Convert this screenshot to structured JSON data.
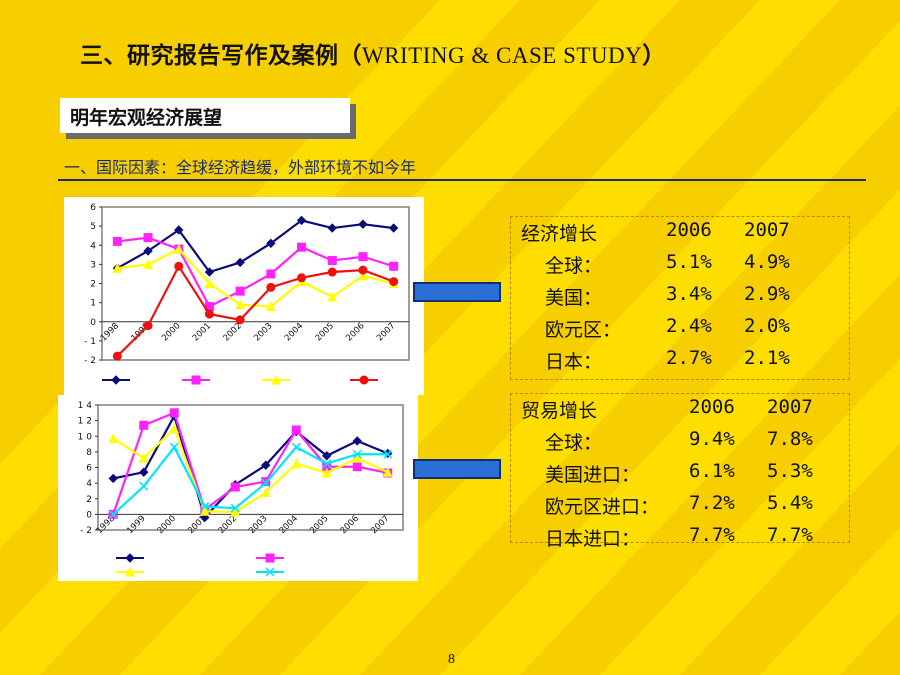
{
  "slide": {
    "title_cn": "三、研究报告写作及案例（",
    "title_en": "WRITING & CASE STUDY",
    "title_close": "）",
    "subtitle_box": "明年宏观经济展望",
    "section_heading": "一、国际因素：全球经济趋缓，外部环境不如今年",
    "page_number": "8"
  },
  "colors": {
    "background": "#f7cf00",
    "stripe": "#ffe100",
    "accent_navy": "#1a2b6b",
    "arrow_fill": "#2a6fd6"
  },
  "growth_table": {
    "header": [
      "经济增长",
      "2006",
      "2007"
    ],
    "rows": [
      [
        "全球：",
        "5.1%",
        "4.9%"
      ],
      [
        "美国：",
        "3.4%",
        "2.9%"
      ],
      [
        "欧元区：",
        "2.4%",
        "2.0%"
      ],
      [
        "日本：",
        "2.7%",
        "2.1%"
      ]
    ]
  },
  "trade_table": {
    "header": [
      "贸易增长",
      "2006",
      "2007"
    ],
    "rows": [
      [
        "全球：",
        "9.4%",
        "7.8%"
      ],
      [
        "美国进口：",
        "6.1%",
        "5.3%"
      ],
      [
        "欧元区进口：",
        "7.2%",
        "5.4%"
      ],
      [
        "日本进口：",
        "7.7%",
        "7.7%"
      ]
    ]
  },
  "chart_data": [
    {
      "type": "line",
      "title": "",
      "x": [
        "1998",
        "1999",
        "2000",
        "2001",
        "2002",
        "2003",
        "2004",
        "2005",
        "2006",
        "2007"
      ],
      "ylim": [
        -2,
        6
      ],
      "yticks": [
        "6",
        "5",
        "4",
        "3",
        "2",
        "1",
        "0",
        "- 1",
        "- 2"
      ],
      "legend_labels": [
        "□ □",
        "□ □",
        "□ □ □",
        "□ □"
      ],
      "series": [
        {
          "color": "#0b0b7a",
          "marker": "diamond",
          "values": [
            2.8,
            3.7,
            4.8,
            2.6,
            3.1,
            4.1,
            5.3,
            4.9,
            5.1,
            4.9
          ]
        },
        {
          "color": "#ff22ff",
          "marker": "square",
          "values": [
            4.2,
            4.4,
            3.8,
            0.8,
            1.6,
            2.5,
            3.9,
            3.2,
            3.4,
            2.9
          ]
        },
        {
          "color": "#ffff00",
          "marker": "triangle",
          "values": [
            2.8,
            3.0,
            3.8,
            2.0,
            0.9,
            0.8,
            2.1,
            1.3,
            2.4,
            2.0
          ]
        },
        {
          "color": "#ee1111",
          "marker": "circle",
          "values": [
            -1.8,
            -0.2,
            2.9,
            0.4,
            0.1,
            1.8,
            2.3,
            2.6,
            2.7,
            2.1
          ]
        }
      ],
      "grid": false
    },
    {
      "type": "line",
      "title": "",
      "x": [
        "1998",
        "1999",
        "2000",
        "2001",
        "2002",
        "2003",
        "2004",
        "2005",
        "2006",
        "2007"
      ],
      "ylim": [
        -2,
        14
      ],
      "yticks": [
        "1 4",
        "1 2",
        "1 0",
        "8",
        "6",
        "4",
        "2",
        "0",
        "- 2"
      ],
      "legend_labels": [
        "□ □",
        "□ □ □ □",
        "□ □ □ □",
        "□ □ □ □"
      ],
      "series": [
        {
          "color": "#0b0b7a",
          "marker": "diamond",
          "values": [
            4.6,
            5.4,
            12.6,
            -0.4,
            3.8,
            6.3,
            10.6,
            7.5,
            9.4,
            7.8
          ]
        },
        {
          "color": "#ff22ff",
          "marker": "square",
          "values": [
            0.0,
            11.4,
            13.0,
            0.6,
            3.5,
            4.2,
            10.8,
            6.1,
            6.1,
            5.3
          ]
        },
        {
          "color": "#ffff00",
          "marker": "triangle",
          "values": [
            9.7,
            7.2,
            11.0,
            0.4,
            0.3,
            2.8,
            6.5,
            5.3,
            7.2,
            5.4
          ]
        },
        {
          "color": "#00e5ff",
          "marker": "x",
          "values": [
            0.0,
            3.6,
            8.6,
            1.0,
            0.8,
            4.0,
            8.6,
            6.5,
            7.7,
            7.7
          ]
        }
      ],
      "grid": false
    }
  ]
}
